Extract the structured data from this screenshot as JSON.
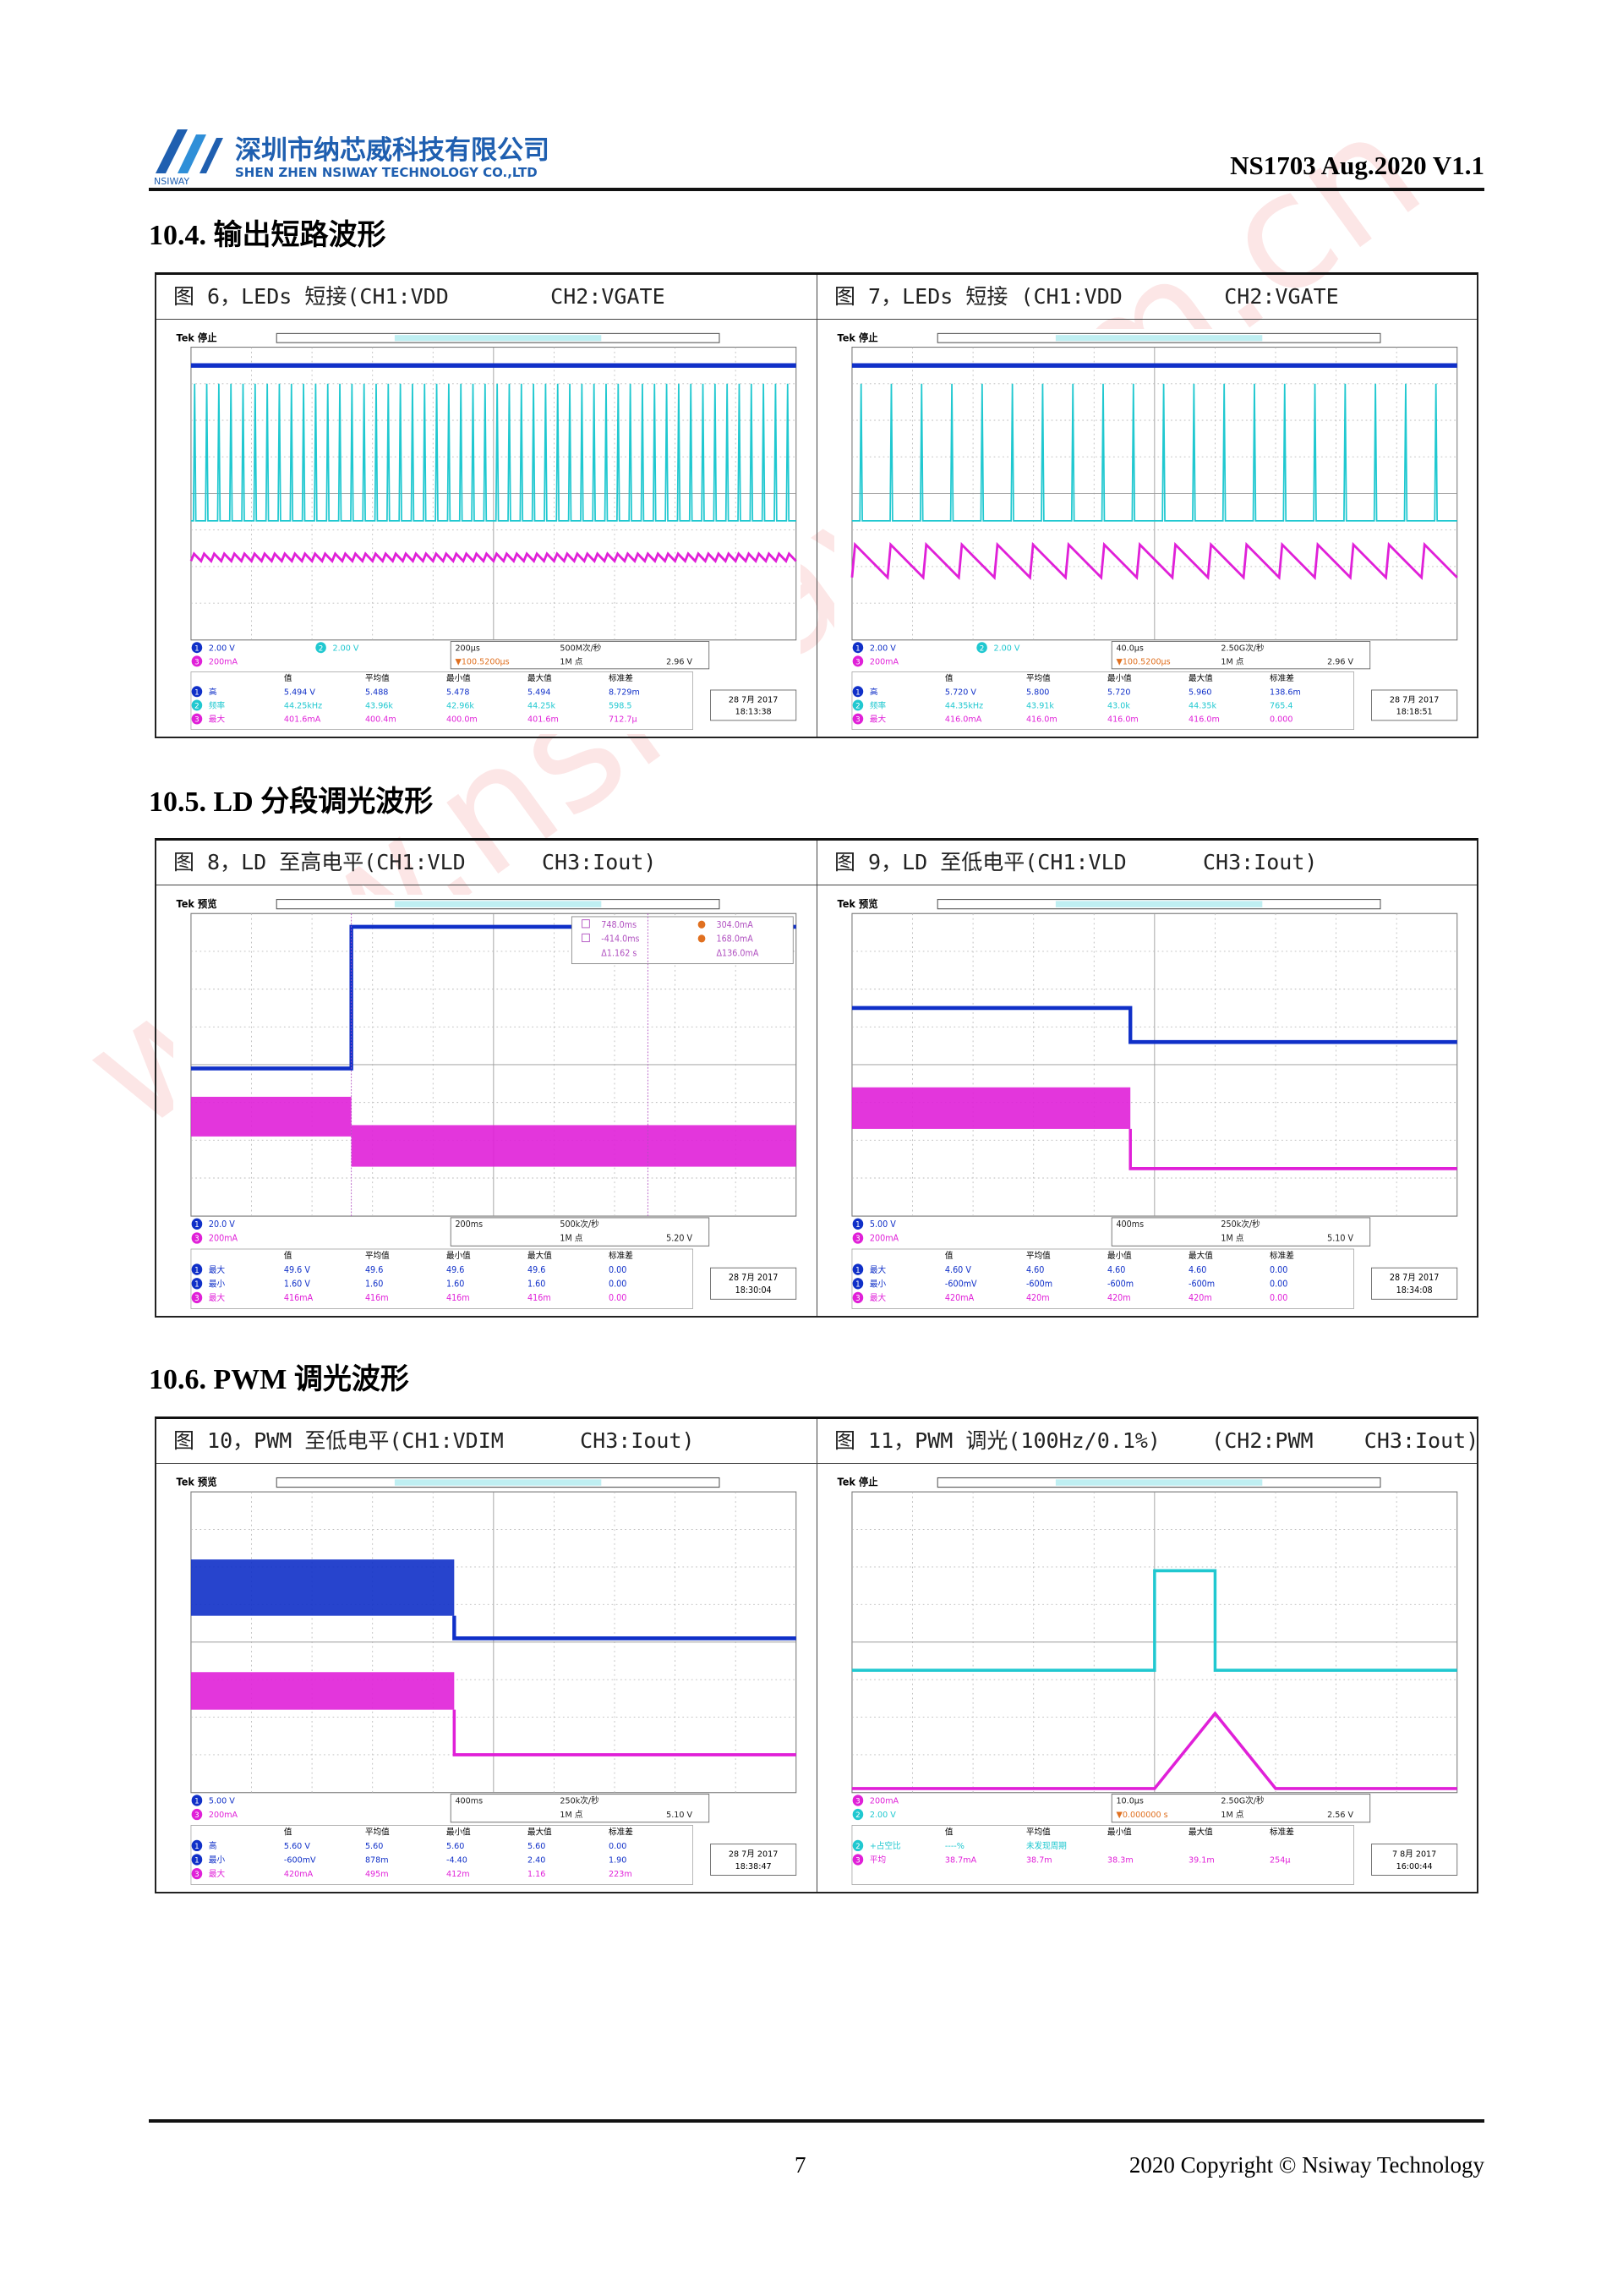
{
  "header": {
    "logo_text": "NSIWAY",
    "company_cn": "深圳市纳芯威科技有限公司",
    "company_en": "SHEN ZHEN NSIWAY TECHNOLOGY CO.,LTD",
    "doc_id": "NS1703 Aug.2020 V1.1"
  },
  "watermark": "www.nsiway.com.cn",
  "sections": [
    {
      "title": "10.4. 输出短路波形",
      "figures": [
        {
          "caption": "图 6，LEDs 短接(CH1:VDD        CH2:VGATE",
          "scope": {
            "status": "Tek 停止",
            "channels": [
              {
                "ch": "1",
                "scale": "2.00 V"
              },
              {
                "ch": "3",
                "scale": "200mA"
              },
              {
                "ch": "2",
                "scale": "2.00 V"
              }
            ],
            "timebase": [
              "200μs",
              "500M次/秒",
              "1M 点",
              "2.96 V",
              "▼100.5200μs"
            ],
            "meas_header": [
              "值",
              "平均值",
              "最小值",
              "最大值",
              "标准差"
            ],
            "meas": [
              {
                "ch": "1",
                "name": "高",
                "values": [
                  "5.494 V",
                  "5.488",
                  "5.478",
                  "5.494",
                  "8.729m"
                ]
              },
              {
                "ch": "2",
                "name": "频率",
                "values": [
                  "44.25kHz",
                  "43.96k",
                  "42.96k",
                  "44.25k",
                  "598.5"
                ]
              },
              {
                "ch": "3",
                "name": "最大",
                "values": [
                  "401.6mA",
                  "400.4m",
                  "400.0m",
                  "401.6m",
                  "712.7μ"
                ]
              }
            ],
            "date": [
              "28 7月 2017",
              "18:13:38"
            ]
          }
        },
        {
          "caption": "图 7，LEDs 短接 (CH1:VDD        CH2:VGATE",
          "scope": {
            "status": "Tek 停止",
            "channels": [
              {
                "ch": "1",
                "scale": "2.00 V"
              },
              {
                "ch": "3",
                "scale": "200mA"
              },
              {
                "ch": "2",
                "scale": "2.00 V"
              }
            ],
            "timebase": [
              "40.0μs",
              "2.50G次/秒",
              "1M 点",
              "2.96 V",
              "▼100.5200μs"
            ],
            "meas_header": [
              "值",
              "平均值",
              "最小值",
              "最大值",
              "标准差"
            ],
            "meas": [
              {
                "ch": "1",
                "name": "高",
                "values": [
                  "5.720 V",
                  "5.800",
                  "5.720",
                  "5.960",
                  "138.6m"
                ]
              },
              {
                "ch": "2",
                "name": "频率",
                "values": [
                  "44.35kHz",
                  "43.91k",
                  "43.0k",
                  "44.35k",
                  "765.4"
                ]
              },
              {
                "ch": "3",
                "name": "最大",
                "values": [
                  "416.0mA",
                  "416.0m",
                  "416.0m",
                  "416.0m",
                  "0.000"
                ]
              }
            ],
            "date": [
              "28 7月 2017",
              "18:18:51"
            ]
          }
        }
      ]
    },
    {
      "title": "10.5. LD 分段调光波形",
      "figures": [
        {
          "caption": "图 8，LD 至高电平(CH1:VLD      CH3:Iout)",
          "scope": {
            "status": "Tek 预览",
            "channels": [
              {
                "ch": "1",
                "scale": "20.0 V"
              },
              {
                "ch": "3",
                "scale": "200mA"
              }
            ],
            "timebase": [
              "200ms",
              "500k次/秒",
              "1M 点",
              "5.20 V"
            ],
            "cursors": [
              "748.0ms",
              "304.0mA",
              "-414.0ms",
              "168.0mA",
              "Δ1.162 s",
              "Δ136.0mA"
            ],
            "meas_header": [
              "值",
              "平均值",
              "最小值",
              "最大值",
              "标准差"
            ],
            "meas": [
              {
                "ch": "1",
                "name": "最大",
                "values": [
                  "49.6 V",
                  "49.6",
                  "49.6",
                  "49.6",
                  "0.00"
                ]
              },
              {
                "ch": "1",
                "name": "最小",
                "values": [
                  "1.60 V",
                  "1.60",
                  "1.60",
                  "1.60",
                  "0.00"
                ]
              },
              {
                "ch": "3",
                "name": "最大",
                "values": [
                  "416mA",
                  "416m",
                  "416m",
                  "416m",
                  "0.00"
                ]
              }
            ],
            "date": [
              "28 7月 2017",
              "18:30:04"
            ]
          }
        },
        {
          "caption": "图 9，LD 至低电平(CH1:VLD      CH3:Iout)",
          "scope": {
            "status": "Tek 预览",
            "channels": [
              {
                "ch": "1",
                "scale": "5.00 V"
              },
              {
                "ch": "3",
                "scale": "200mA"
              }
            ],
            "timebase": [
              "400ms",
              "250k次/秒",
              "1M 点",
              "5.10 V"
            ],
            "meas_header": [
              "值",
              "平均值",
              "最小值",
              "最大值",
              "标准差"
            ],
            "meas": [
              {
                "ch": "1",
                "name": "最大",
                "values": [
                  "4.60 V",
                  "4.60",
                  "4.60",
                  "4.60",
                  "0.00"
                ]
              },
              {
                "ch": "1",
                "name": "最小",
                "values": [
                  "-600mV",
                  "-600m",
                  "-600m",
                  "-600m",
                  "0.00"
                ]
              },
              {
                "ch": "3",
                "name": "最大",
                "values": [
                  "420mA",
                  "420m",
                  "420m",
                  "420m",
                  "0.00"
                ]
              }
            ],
            "date": [
              "28 7月 2017",
              "18:34:08"
            ]
          }
        }
      ]
    },
    {
      "title": "10.6. PWM 调光波形",
      "figures": [
        {
          "caption": "图 10，PWM 至低电平(CH1:VDIM      CH3:Iout)",
          "scope": {
            "status": "Tek 预览",
            "channels": [
              {
                "ch": "1",
                "scale": "5.00 V"
              },
              {
                "ch": "3",
                "scale": "200mA"
              }
            ],
            "timebase": [
              "400ms",
              "250k次/秒",
              "1M 点",
              "5.10 V"
            ],
            "meas_header": [
              "值",
              "平均值",
              "最小值",
              "最大值",
              "标准差"
            ],
            "meas": [
              {
                "ch": "1",
                "name": "高",
                "values": [
                  "5.60 V",
                  "5.60",
                  "5.60",
                  "5.60",
                  "0.00"
                ]
              },
              {
                "ch": "1",
                "name": "最小",
                "values": [
                  "-600mV",
                  "878m",
                  "-4.40",
                  "2.40",
                  "1.90"
                ]
              },
              {
                "ch": "3",
                "name": "最大",
                "values": [
                  "420mA",
                  "495m",
                  "412m",
                  "1.16",
                  "223m"
                ]
              }
            ],
            "date": [
              "28 7月 2017",
              "18:38:47"
            ]
          }
        },
        {
          "caption": "图 11，PWM 调光(100Hz/0.1%)    (CH2:PWM    CH3:Iout)",
          "scope": {
            "status": "Tek 停止",
            "channels": [
              {
                "ch": "3",
                "scale": "200mA"
              },
              {
                "ch": "2",
                "scale": "2.00 V"
              }
            ],
            "timebase": [
              "10.0μs",
              "2.50G次/秒",
              "1M 点",
              "2.56 V",
              "▼0.000000 s"
            ],
            "meas_header": [
              "值",
              "平均值",
              "最小值",
              "最大值",
              "标准差"
            ],
            "meas": [
              {
                "ch": "2",
                "name": "+占空比",
                "values": [
                  "----%",
                  "未发现周期"
                ]
              },
              {
                "ch": "3",
                "name": "平均",
                "values": [
                  "38.7mA",
                  "38.7m",
                  "38.3m",
                  "39.1m",
                  "254μ"
                ]
              }
            ],
            "date": [
              "7 8月 2017",
              "16:00:44"
            ]
          }
        }
      ]
    }
  ],
  "footer": {
    "page": "7",
    "copyright": "2020 Copyright © Nsiway Technology"
  }
}
